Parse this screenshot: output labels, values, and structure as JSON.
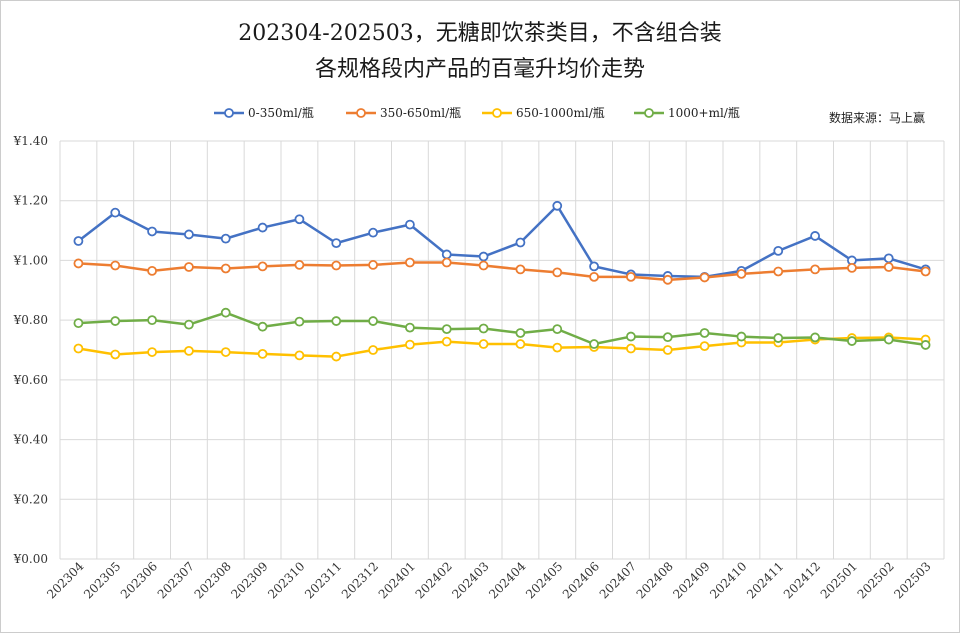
{
  "chart_data": {
    "type": "line",
    "title": "202304-202503，无糖即饮茶类目，不含组合装",
    "subtitle": "各规格段内产品的百毫升均价走势",
    "source": "数据来源：马上赢",
    "y_tick_labels": [
      "¥0.00",
      "¥0.20",
      "¥0.40",
      "¥0.60",
      "¥0.80",
      "¥1.00",
      "¥1.20",
      "¥1.40"
    ],
    "ylim": [
      0,
      1.4
    ],
    "grid": true,
    "legend_position": "top",
    "categories": [
      "202304",
      "202305",
      "202306",
      "202307",
      "202308",
      "202309",
      "202310",
      "202311",
      "202312",
      "202401",
      "202402",
      "202403",
      "202404",
      "202405",
      "202406",
      "202407",
      "202408",
      "202409",
      "202410",
      "202411",
      "202412",
      "202501",
      "202502",
      "202503"
    ],
    "series": [
      {
        "name": "0-350ml/瓶",
        "color": "#4472C4",
        "values": [
          1.065,
          1.16,
          1.097,
          1.087,
          1.073,
          1.11,
          1.138,
          1.058,
          1.093,
          1.12,
          1.02,
          1.013,
          1.06,
          1.183,
          0.98,
          0.953,
          0.948,
          0.945,
          0.965,
          1.032,
          1.082,
          1.0,
          1.007,
          0.97
        ]
      },
      {
        "name": "350-650ml/瓶",
        "color": "#ED7D31",
        "values": [
          0.99,
          0.983,
          0.965,
          0.978,
          0.973,
          0.98,
          0.985,
          0.983,
          0.985,
          0.993,
          0.993,
          0.983,
          0.97,
          0.96,
          0.945,
          0.945,
          0.935,
          0.943,
          0.955,
          0.963,
          0.97,
          0.975,
          0.978,
          0.963
        ]
      },
      {
        "name": "650-1000ml/瓶",
        "color": "#FFC000",
        "values": [
          0.705,
          0.685,
          0.693,
          0.697,
          0.693,
          0.687,
          0.682,
          0.678,
          0.7,
          0.718,
          0.728,
          0.72,
          0.72,
          0.708,
          0.71,
          0.705,
          0.7,
          0.713,
          0.725,
          0.725,
          0.735,
          0.74,
          0.742,
          0.735
        ]
      },
      {
        "name": "1000+ml/瓶",
        "color": "#70AD47",
        "values": [
          0.79,
          0.797,
          0.8,
          0.785,
          0.825,
          0.778,
          0.795,
          0.797,
          0.797,
          0.775,
          0.77,
          0.772,
          0.757,
          0.77,
          0.72,
          0.745,
          0.743,
          0.757,
          0.745,
          0.74,
          0.742,
          0.73,
          0.735,
          0.717
        ]
      }
    ]
  }
}
